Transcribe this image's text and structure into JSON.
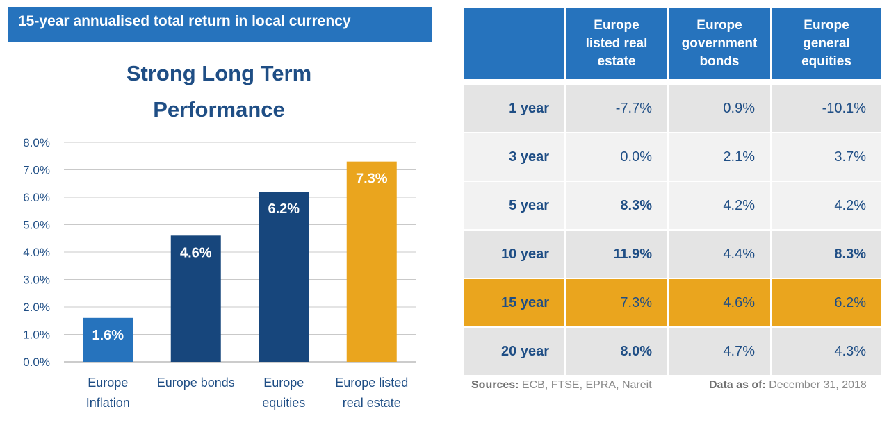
{
  "banner": "15-year annualised total return in local currency",
  "chart_data": {
    "type": "bar",
    "title_lines": [
      "Strong Long Term",
      "Performance"
    ],
    "categories": [
      [
        "Europe",
        "Inflation"
      ],
      [
        "Europe bonds"
      ],
      [
        "Europe",
        "equities"
      ],
      [
        "Europe listed",
        "real estate"
      ]
    ],
    "values": [
      1.6,
      4.6,
      6.2,
      7.3
    ],
    "data_labels": [
      "1.6%",
      "4.6%",
      "6.2%",
      "7.3%"
    ],
    "bar_colors": [
      "#2673bd",
      "#17467c",
      "#17467c",
      "#eaa51e"
    ],
    "ylim": [
      0,
      8
    ],
    "yticks": [
      "0.0%",
      "1.0%",
      "2.0%",
      "3.0%",
      "4.0%",
      "5.0%",
      "6.0%",
      "7.0%",
      "8.0%"
    ],
    "grid": true,
    "xlabel": "",
    "ylabel": ""
  },
  "table": {
    "headers": [
      "",
      [
        "Europe",
        "listed real",
        "estate"
      ],
      [
        "Europe",
        "government",
        "bonds"
      ],
      [
        "Europe",
        "general",
        "equities"
      ]
    ],
    "rows": [
      {
        "period": "1 year",
        "values": [
          "-7.7%",
          "0.9%",
          "-10.1%"
        ],
        "bold": [
          false,
          false,
          false
        ]
      },
      {
        "period": "3 year",
        "values": [
          "0.0%",
          "2.1%",
          "3.7%"
        ],
        "bold": [
          false,
          false,
          false
        ]
      },
      {
        "period": "5 year",
        "values": [
          "8.3%",
          "4.2%",
          "4.2%"
        ],
        "bold": [
          true,
          false,
          false
        ]
      },
      {
        "period": "10 year",
        "values": [
          "11.9%",
          "4.4%",
          "8.3%"
        ],
        "bold": [
          true,
          false,
          true
        ]
      },
      {
        "period": "15 year",
        "values": [
          "7.3%",
          "4.6%",
          "6.2%"
        ],
        "bold": [
          false,
          false,
          false
        ]
      },
      {
        "period": "20 year",
        "values": [
          "8.0%",
          "4.7%",
          "4.3%"
        ],
        "bold": [
          true,
          false,
          false
        ]
      }
    ],
    "highlight_color": "#eaa51e"
  },
  "footer": {
    "sources_label": "Sources:",
    "sources": "ECB, FTSE, EPRA, Nareit",
    "asof_label": "Data as of:",
    "asof": "December 31, 2018"
  }
}
